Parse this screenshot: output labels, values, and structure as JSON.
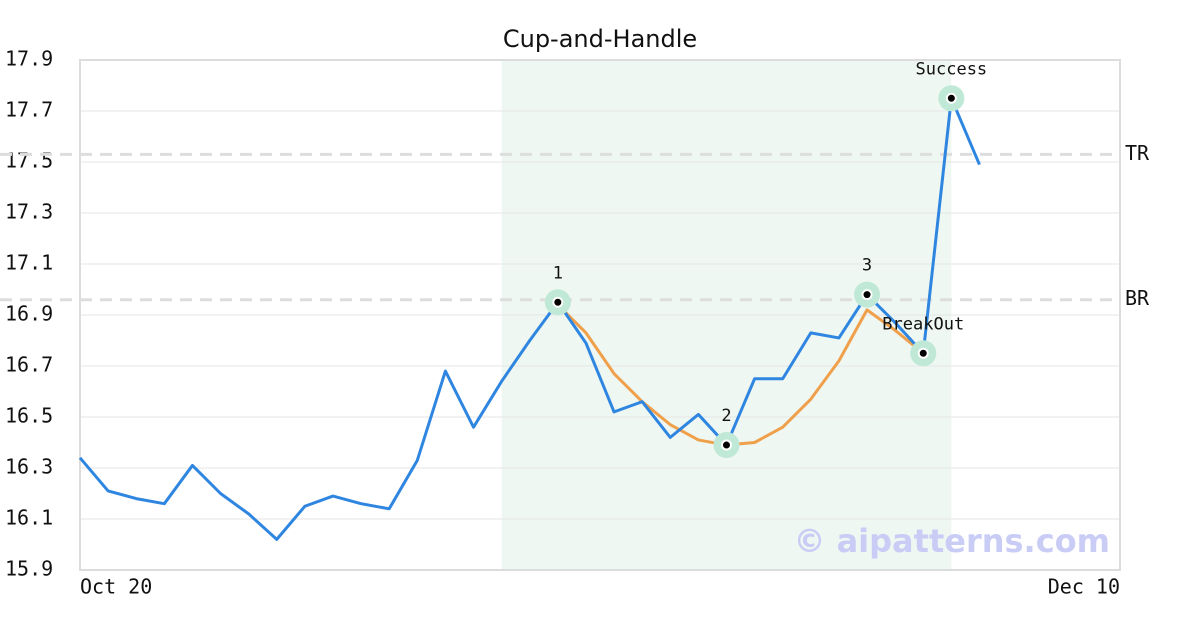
{
  "chart_data": {
    "type": "line",
    "title": "Cup-and-Handle",
    "categories": [
      "Oct 20",
      null,
      null,
      null,
      null,
      null,
      null,
      null,
      null,
      null,
      null,
      null,
      null,
      null,
      null,
      null,
      null,
      null,
      null,
      null,
      null,
      null,
      null,
      null,
      null,
      null,
      null,
      null,
      null,
      null,
      null,
      null,
      null,
      null,
      null,
      null,
      null,
      "Dec 10"
    ],
    "series": [
      {
        "color": "#2f86e0",
        "values": [
          16.34,
          16.21,
          16.18,
          16.16,
          16.31,
          16.2,
          16.12,
          16.02,
          16.15,
          16.19,
          16.16,
          16.14,
          16.33,
          16.68,
          16.46,
          16.64,
          16.8,
          16.95,
          16.79,
          16.52,
          16.56,
          16.42,
          16.51,
          16.39,
          16.65,
          16.65,
          16.83,
          16.81,
          16.98,
          16.87,
          16.75,
          17.75,
          17.49,
          null,
          null,
          null,
          null,
          null
        ]
      },
      {
        "color": "#f0a04b",
        "values": [
          null,
          null,
          null,
          null,
          null,
          null,
          null,
          null,
          null,
          null,
          null,
          null,
          null,
          null,
          null,
          null,
          null,
          16.94,
          16.83,
          16.67,
          16.56,
          16.47,
          16.41,
          16.39,
          16.4,
          16.46,
          16.57,
          16.72,
          16.92,
          16.84,
          16.75,
          null,
          null,
          null,
          null,
          null,
          null,
          null
        ]
      }
    ],
    "ylim": [
      15.9,
      17.9
    ],
    "yticks": [
      15.9,
      16.1,
      16.3,
      16.5,
      16.7,
      16.9,
      17.1,
      17.3,
      17.5,
      17.7,
      17.9
    ],
    "grid": true,
    "shaded_x": [
      15,
      31
    ],
    "shade_color": "#eef7f2",
    "reference_lines": [
      {
        "label": "TR",
        "value": 17.53
      },
      {
        "label": "BR",
        "value": 16.96
      }
    ],
    "annotations": [
      {
        "label": "1",
        "x": 17
      },
      {
        "label": "2",
        "x": 23
      },
      {
        "label": "3",
        "x": 28
      },
      {
        "label": "BreakOut",
        "x": 30
      },
      {
        "label": "Success",
        "x": 31
      }
    ],
    "watermark": "© aipatterns.com"
  }
}
